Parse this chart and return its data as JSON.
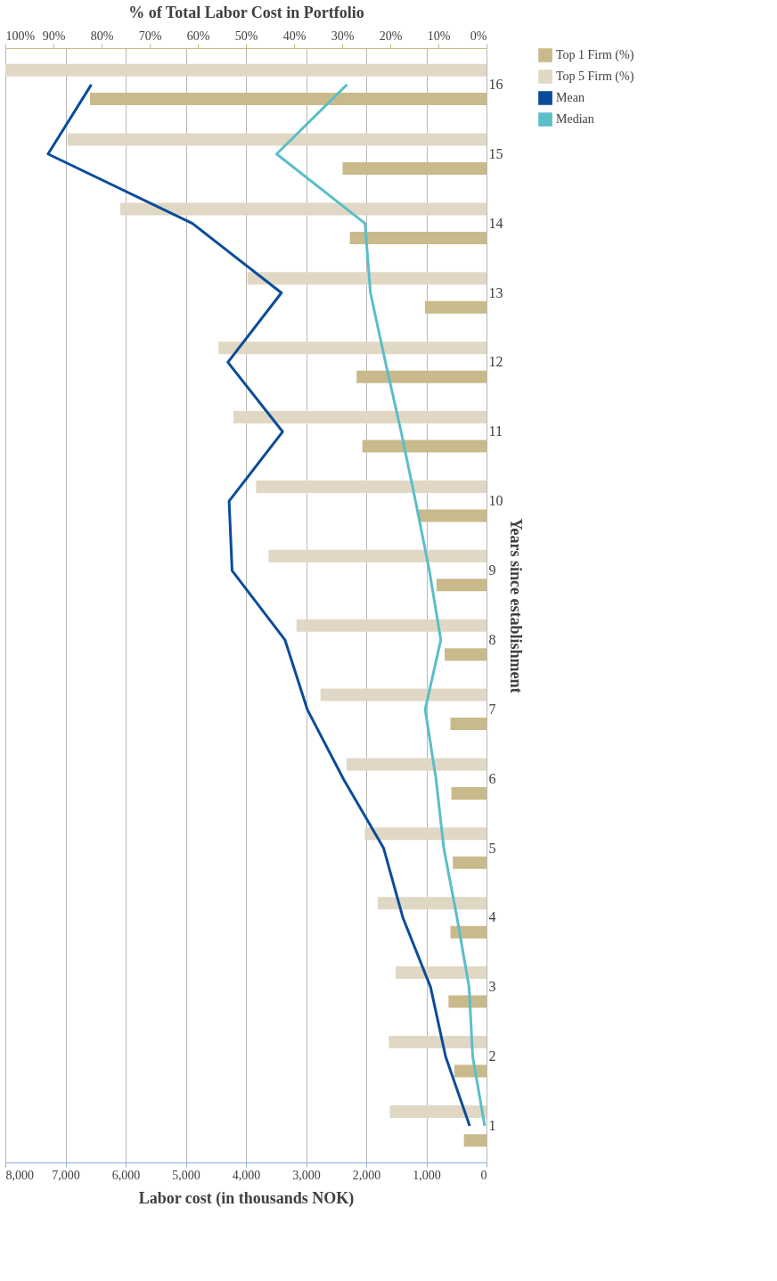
{
  "chart_data": {
    "type": "bar",
    "orientation": "horizontal",
    "xlabel": "Labor cost (in thousands NOK)",
    "x2label": "% of Total Labor Cost in Portfolio",
    "ylabel": "Years since establishment",
    "categories": [
      "16",
      "15",
      "14",
      "13",
      "12",
      "11",
      "10",
      "9",
      "8",
      "7",
      "6",
      "5",
      "4",
      "3",
      "2",
      "1"
    ],
    "series": [
      {
        "name": "Top 1 Firm (%)",
        "axis": "x2",
        "color": "#c9ba8b",
        "values": [
          82.4,
          29.9,
          28.4,
          12.8,
          27.0,
          25.8,
          14.2,
          10.4,
          8.7,
          7.5,
          7.3,
          7.0,
          7.5,
          7.9,
          6.7,
          4.7
        ]
      },
      {
        "name": "Top 5 Firm (%)",
        "axis": "x2",
        "color": "#e0d8c4",
        "values": [
          100,
          87.1,
          76.1,
          49.7,
          55.7,
          52.6,
          47.9,
          45.3,
          39.5,
          34.5,
          29.1,
          25.3,
          22.6,
          18.9,
          20.3,
          20.1
        ]
      },
      {
        "name": "Mean",
        "type": "line",
        "color": "#0a4c9a",
        "values": [
          6570,
          7290,
          4890,
          3410,
          4300,
          3390,
          4280,
          4230,
          3350,
          2980,
          2380,
          1710,
          1390,
          930,
          680,
          280
        ]
      },
      {
        "name": "Median",
        "type": "line",
        "color": "#5bbec8",
        "values": [
          2320,
          3490,
          2020,
          1930,
          1680,
          1420,
          1180,
          950,
          760,
          1020,
          840,
          710,
          490,
          290,
          230,
          30
        ]
      }
    ],
    "xlim": [
      8000,
      0
    ],
    "xticks": [
      {
        "value": 8000,
        "label": "8,000"
      },
      {
        "value": 7000,
        "label": "7,000"
      },
      {
        "value": 6000,
        "label": "6,000"
      },
      {
        "value": 5000,
        "label": "5,000"
      },
      {
        "value": 4000,
        "label": "4,000"
      },
      {
        "value": 3000,
        "label": "3,000"
      },
      {
        "value": 2000,
        "label": "2,000"
      },
      {
        "value": 1000,
        "label": "1,000"
      },
      0
    ],
    "x2lim": [
      100,
      0
    ],
    "x2ticks": [
      {
        "value": 100,
        "label": "100%"
      },
      {
        "value": 90,
        "label": "90%"
      },
      {
        "value": 80,
        "label": "80%"
      },
      {
        "value": 70,
        "label": "70%"
      },
      {
        "value": 60,
        "label": "60%"
      },
      {
        "value": 50,
        "label": "50%"
      },
      {
        "value": 40,
        "label": "40%"
      },
      {
        "value": 30,
        "label": "30%"
      },
      {
        "value": 20,
        "label": "20%"
      },
      {
        "value": 10,
        "label": "10%"
      },
      {
        "value": 0,
        "label": "0%"
      }
    ],
    "grid": "x",
    "legend": "right",
    "marker": "none",
    "line_style": "solid"
  }
}
